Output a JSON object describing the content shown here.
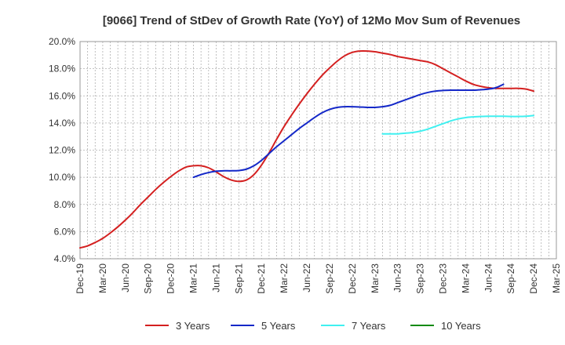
{
  "chart_data": {
    "type": "line",
    "title": "[9066]  Trend of StDev of Growth Rate (YoY) of 12Mo Mov Sum of Revenues",
    "xlabel": "",
    "ylabel": "",
    "ylim": [
      4.0,
      20.0
    ],
    "yticks": [
      "4.0%",
      "6.0%",
      "8.0%",
      "10.0%",
      "12.0%",
      "14.0%",
      "16.0%",
      "18.0%",
      "20.0%"
    ],
    "ytick_values": [
      4,
      6,
      8,
      10,
      12,
      14,
      16,
      18,
      20
    ],
    "xticks": [
      "Dec-19",
      "Mar-20",
      "Jun-20",
      "Sep-20",
      "Dec-20",
      "Mar-21",
      "Jun-21",
      "Sep-21",
      "Dec-21",
      "Mar-22",
      "Jun-22",
      "Sep-22",
      "Dec-22",
      "Mar-23",
      "Jun-23",
      "Sep-23",
      "Dec-23",
      "Mar-24",
      "Jun-24",
      "Sep-24",
      "Dec-24",
      "Mar-25"
    ],
    "x_count": 64,
    "grid": true,
    "legend_position": "bottom",
    "series": [
      {
        "name": "3 Years",
        "color": "#d42020",
        "start_index": 0,
        "values": [
          4.8,
          4.95,
          5.2,
          5.5,
          5.9,
          6.35,
          6.85,
          7.4,
          8.0,
          8.55,
          9.1,
          9.6,
          10.05,
          10.45,
          10.75,
          10.85,
          10.85,
          10.7,
          10.4,
          10.05,
          9.8,
          9.7,
          9.8,
          10.2,
          10.9,
          11.8,
          12.8,
          13.75,
          14.6,
          15.4,
          16.15,
          16.85,
          17.5,
          18.05,
          18.55,
          18.95,
          19.2,
          19.3,
          19.3,
          19.25,
          19.15,
          19.05,
          18.9,
          18.8,
          18.7,
          18.6,
          18.5,
          18.3,
          18.0,
          17.7,
          17.4,
          17.1,
          16.85,
          16.7,
          16.6,
          16.55,
          16.55,
          16.55,
          16.55,
          16.5,
          16.35
        ]
      },
      {
        "name": "5 Years",
        "color": "#1428c8",
        "start_index": 15,
        "values": [
          10.0,
          10.2,
          10.35,
          10.45,
          10.48,
          10.48,
          10.5,
          10.6,
          10.85,
          11.25,
          11.75,
          12.25,
          12.7,
          13.15,
          13.6,
          14.0,
          14.4,
          14.75,
          15.0,
          15.15,
          15.2,
          15.2,
          15.18,
          15.15,
          15.15,
          15.2,
          15.3,
          15.5,
          15.7,
          15.9,
          16.1,
          16.25,
          16.35,
          16.4,
          16.42,
          16.42,
          16.42,
          16.42,
          16.45,
          16.5,
          16.6,
          16.85
        ]
      },
      {
        "name": "7 Years",
        "color": "#40f0f0",
        "start_index": 40,
        "values": [
          13.2,
          13.2,
          13.2,
          13.25,
          13.3,
          13.4,
          13.55,
          13.75,
          13.95,
          14.15,
          14.3,
          14.4,
          14.45,
          14.48,
          14.5,
          14.5,
          14.5,
          14.48,
          14.48,
          14.5,
          14.55
        ]
      },
      {
        "name": "10 Years",
        "color": "#108a10",
        "start_index": 0,
        "values": []
      }
    ]
  }
}
